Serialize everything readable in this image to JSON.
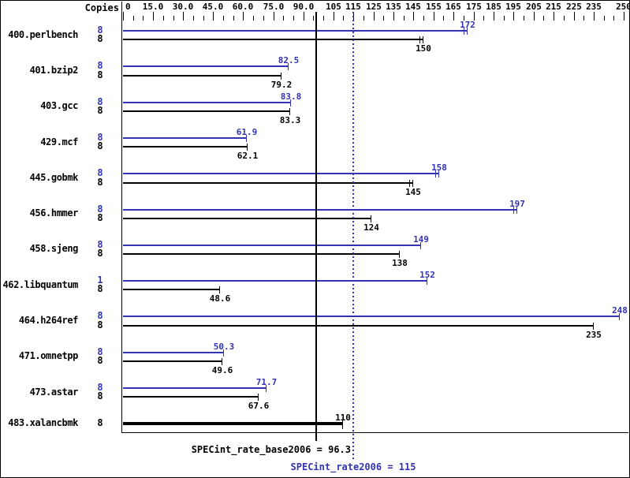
{
  "header": {
    "copies_label": "Copies"
  },
  "colors": {
    "peak": "#3333b4",
    "base": "#000000",
    "background": "#ffffff",
    "frame": "#000000"
  },
  "footer": {
    "base_label": "SPECint_rate_base2006 = 96.3",
    "peak_label": "SPECint_rate2006 = 115"
  },
  "chart_data": {
    "type": "bar",
    "orientation": "horizontal",
    "xlim": [
      0,
      250
    ],
    "grid": false,
    "axis_position": "top",
    "minor_tick_step": 5,
    "major_ticks": [
      {
        "value": 0,
        "label": "0"
      },
      {
        "value": 15,
        "label": "15.0"
      },
      {
        "value": 30,
        "label": "30.0"
      },
      {
        "value": 45,
        "label": "45.0"
      },
      {
        "value": 60,
        "label": "60.0"
      },
      {
        "value": 75,
        "label": "75.0"
      },
      {
        "value": 90,
        "label": "90.0"
      },
      {
        "value": 105,
        "label": "105"
      },
      {
        "value": 115,
        "label": "115"
      },
      {
        "value": 125,
        "label": "125"
      },
      {
        "value": 135,
        "label": "135"
      },
      {
        "value": 145,
        "label": "145"
      },
      {
        "value": 155,
        "label": "155"
      },
      {
        "value": 165,
        "label": "165"
      },
      {
        "value": 175,
        "label": "175"
      },
      {
        "value": 185,
        "label": "185"
      },
      {
        "value": 195,
        "label": "195"
      },
      {
        "value": 205,
        "label": "205"
      },
      {
        "value": 215,
        "label": "215"
      },
      {
        "value": 225,
        "label": "225"
      },
      {
        "value": 235,
        "label": "235"
      },
      {
        "value": 250,
        "label": "250"
      }
    ],
    "reference_lines": [
      {
        "name": "SPECint_rate_base2006",
        "value": 96.3,
        "style": "solid",
        "color": "#000000",
        "label": "SPECint_rate_base2006 = 96.3"
      },
      {
        "name": "SPECint_rate2006",
        "value": 115,
        "style": "dotted",
        "color": "#3333b4",
        "label": "SPECint_rate2006 = 115"
      }
    ],
    "benchmarks": [
      {
        "name": "400.perlbench",
        "bars": [
          {
            "type": "peak",
            "copies": "8",
            "value": 172,
            "label": "172",
            "caps": 2,
            "label_above": true
          },
          {
            "type": "base",
            "copies": "8",
            "value": 150,
            "label": "150",
            "caps": 2,
            "label_above": false
          }
        ]
      },
      {
        "name": "401.bzip2",
        "bars": [
          {
            "type": "peak",
            "copies": "8",
            "value": 82.5,
            "label": "82.5",
            "caps": 1,
            "label_above": true
          },
          {
            "type": "base",
            "copies": "8",
            "value": 79.2,
            "label": "79.2",
            "caps": 1,
            "label_above": false
          }
        ]
      },
      {
        "name": "403.gcc",
        "bars": [
          {
            "type": "peak",
            "copies": "8",
            "value": 83.8,
            "label": "83.8",
            "caps": 1,
            "label_above": true
          },
          {
            "type": "base",
            "copies": "8",
            "value": 83.3,
            "label": "83.3",
            "caps": 1,
            "label_above": false
          }
        ]
      },
      {
        "name": "429.mcf",
        "bars": [
          {
            "type": "peak",
            "copies": "8",
            "value": 61.9,
            "label": "61.9",
            "caps": 1,
            "label_above": true
          },
          {
            "type": "base",
            "copies": "8",
            "value": 62.1,
            "label": "62.1",
            "caps": 1,
            "label_above": false
          }
        ]
      },
      {
        "name": "445.gobmk",
        "bars": [
          {
            "type": "peak",
            "copies": "8",
            "value": 158,
            "label": "158",
            "caps": 2,
            "label_above": true
          },
          {
            "type": "base",
            "copies": "8",
            "value": 145,
            "label": "145",
            "caps": 2,
            "label_above": false
          }
        ]
      },
      {
        "name": "456.hmmer",
        "bars": [
          {
            "type": "peak",
            "copies": "8",
            "value": 197,
            "label": "197",
            "caps": 2,
            "label_above": true
          },
          {
            "type": "base",
            "copies": "8",
            "value": 124,
            "label": "124",
            "caps": 1,
            "label_above": false
          }
        ]
      },
      {
        "name": "458.sjeng",
        "bars": [
          {
            "type": "peak",
            "copies": "8",
            "value": 149,
            "label": "149",
            "caps": 1,
            "label_above": true
          },
          {
            "type": "base",
            "copies": "8",
            "value": 138,
            "label": "138",
            "caps": 1,
            "label_above": false
          }
        ]
      },
      {
        "name": "462.libquantum",
        "bars": [
          {
            "type": "peak",
            "copies": "1",
            "value": 152,
            "label": "152",
            "caps": 1,
            "label_above": true
          },
          {
            "type": "base",
            "copies": "8",
            "value": 48.6,
            "label": "48.6",
            "caps": 1,
            "label_above": false
          }
        ]
      },
      {
        "name": "464.h264ref",
        "bars": [
          {
            "type": "peak",
            "copies": "8",
            "value": 248,
            "label": "248",
            "caps": 1,
            "label_above": true
          },
          {
            "type": "base",
            "copies": "8",
            "value": 235,
            "label": "235",
            "caps": 1,
            "label_above": false
          }
        ]
      },
      {
        "name": "471.omnetpp",
        "bars": [
          {
            "type": "peak",
            "copies": "8",
            "value": 50.3,
            "label": "50.3",
            "caps": 1,
            "label_above": true
          },
          {
            "type": "base",
            "copies": "8",
            "value": 49.6,
            "label": "49.6",
            "caps": 1,
            "label_above": false
          }
        ]
      },
      {
        "name": "473.astar",
        "bars": [
          {
            "type": "peak",
            "copies": "8",
            "value": 71.7,
            "label": "71.7",
            "caps": 1,
            "label_above": true
          },
          {
            "type": "base",
            "copies": "8",
            "value": 67.6,
            "label": "67.6",
            "caps": 1,
            "label_above": false
          }
        ]
      },
      {
        "name": "483.xalancbmk",
        "bars": [
          {
            "type": "base",
            "copies": "8",
            "value": 110,
            "label": "110",
            "caps": 1,
            "label_above": true,
            "thick": true
          }
        ]
      }
    ]
  }
}
